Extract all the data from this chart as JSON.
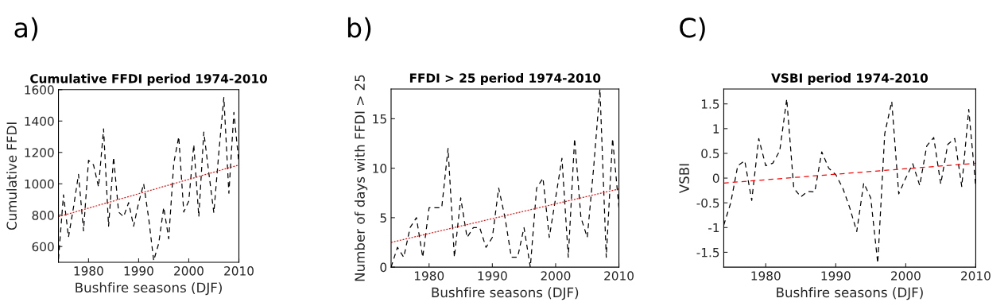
{
  "chart_data": [
    {
      "type": "line",
      "title": "Cumulative FFDI period 1974-2010",
      "xlabel": "Bushfire seasons (DJF)",
      "ylabel": "Cumulative FFDI",
      "annotations": [
        "a)"
      ],
      "xlim": [
        1974,
        2010
      ],
      "xticks": [
        1980,
        1990,
        2000,
        2010
      ],
      "ylim": [
        500,
        1600
      ],
      "yticks": [
        600,
        800,
        1000,
        1200,
        1400,
        1600
      ],
      "grid": false,
      "legend": false,
      "series": [
        {
          "color": "#000000",
          "line_style": "dashed",
          "x": [
            1974,
            1975,
            1976,
            1977,
            1978,
            1979,
            1980,
            1981,
            1982,
            1983,
            1984,
            1985,
            1986,
            1987,
            1988,
            1989,
            1990,
            1991,
            1992,
            1993,
            1994,
            1995,
            1996,
            1997,
            1998,
            1999,
            2000,
            2001,
            2002,
            2003,
            2004,
            2005,
            2006,
            2007,
            2008,
            2009,
            2010
          ],
          "values": [
            520,
            930,
            660,
            850,
            1060,
            700,
            1150,
            1120,
            980,
            1350,
            730,
            1170,
            820,
            790,
            880,
            730,
            880,
            1000,
            780,
            510,
            620,
            850,
            650,
            1130,
            1300,
            820,
            890,
            1250,
            790,
            1330,
            1070,
            815,
            1200,
            1550,
            940,
            1455,
            1130
          ]
        },
        {
          "color": "#ff0000",
          "line_style": "dotted",
          "x": [
            1974,
            2010
          ],
          "values": [
            790,
            1120
          ]
        }
      ]
    },
    {
      "type": "line",
      "title": "FFDI > 25 period 1974-2010",
      "xlabel": "Bushfire seasons (DJF)",
      "ylabel": "Number of days with FFDI > 25",
      "annotations": [
        "b)"
      ],
      "xlim": [
        1974,
        2010
      ],
      "xticks": [
        1980,
        1990,
        2000,
        2010
      ],
      "ylim": [
        0,
        18
      ],
      "yticks": [
        0,
        5,
        10,
        15
      ],
      "grid": false,
      "legend": false,
      "series": [
        {
          "color": "#000000",
          "line_style": "dashed",
          "x": [
            1974,
            1975,
            1976,
            1977,
            1978,
            1979,
            1980,
            1981,
            1982,
            1983,
            1984,
            1985,
            1986,
            1987,
            1988,
            1989,
            1990,
            1991,
            1992,
            1993,
            1994,
            1995,
            1996,
            1997,
            1998,
            1999,
            2000,
            2001,
            2002,
            2003,
            2004,
            2005,
            2006,
            2007,
            2008,
            2009,
            2010
          ],
          "values": [
            0,
            2,
            1,
            4,
            5,
            1,
            6,
            6,
            6,
            12,
            1,
            7,
            3,
            4,
            4,
            2,
            3,
            8,
            5,
            1,
            1,
            4,
            0,
            8,
            9,
            3,
            7,
            11,
            1,
            13,
            5,
            3,
            10,
            18,
            1,
            13,
            6
          ]
        },
        {
          "color": "#ff0000",
          "line_style": "dotted",
          "x": [
            1974,
            2010
          ],
          "values": [
            2.5,
            7.9
          ]
        }
      ]
    },
    {
      "type": "line",
      "title": "VSBI period 1974-2010",
      "xlabel": "Bushfire seasons (DJF)",
      "ylabel": "VSBI",
      "annotations": [
        "C)"
      ],
      "xlim": [
        1974,
        2010
      ],
      "xticks": [
        1980,
        1990,
        2000,
        2010
      ],
      "ylim": [
        -1.8,
        1.8
      ],
      "yticks": [
        {
          "value": -1.5,
          "label": "-1.5"
        },
        {
          "value": -1,
          "label": "-1"
        },
        {
          "value": -0.5,
          "label": "-0.5"
        },
        0,
        0.5,
        1,
        1.5
      ],
      "grid": false,
      "legend": false,
      "series": [
        {
          "color": "#000000",
          "line_style": "dashed",
          "x": [
            1974,
            1975,
            1976,
            1977,
            1978,
            1979,
            1980,
            1981,
            1982,
            1983,
            1984,
            1985,
            1986,
            1987,
            1988,
            1989,
            1990,
            1991,
            1992,
            1993,
            1994,
            1995,
            1996,
            1997,
            1998,
            1999,
            2000,
            2001,
            2002,
            2003,
            2004,
            2005,
            2006,
            2007,
            2008,
            2009,
            2010
          ],
          "values": [
            -0.95,
            -0.5,
            0.25,
            0.35,
            -0.45,
            0.8,
            0.25,
            0.3,
            0.55,
            1.6,
            -0.2,
            -0.38,
            -0.27,
            -0.28,
            0.53,
            0.2,
            0.07,
            -0.2,
            -0.6,
            -1.08,
            -0.1,
            -0.4,
            -1.72,
            0.9,
            1.55,
            -0.32,
            0.0,
            0.29,
            -0.15,
            0.65,
            0.82,
            -0.12,
            0.68,
            0.8,
            -0.17,
            1.39,
            -0.17
          ]
        },
        {
          "color": "#ff0000",
          "line_style": "dashed",
          "x": [
            1974,
            2010
          ],
          "values": [
            -0.1,
            0.3
          ]
        }
      ]
    }
  ]
}
